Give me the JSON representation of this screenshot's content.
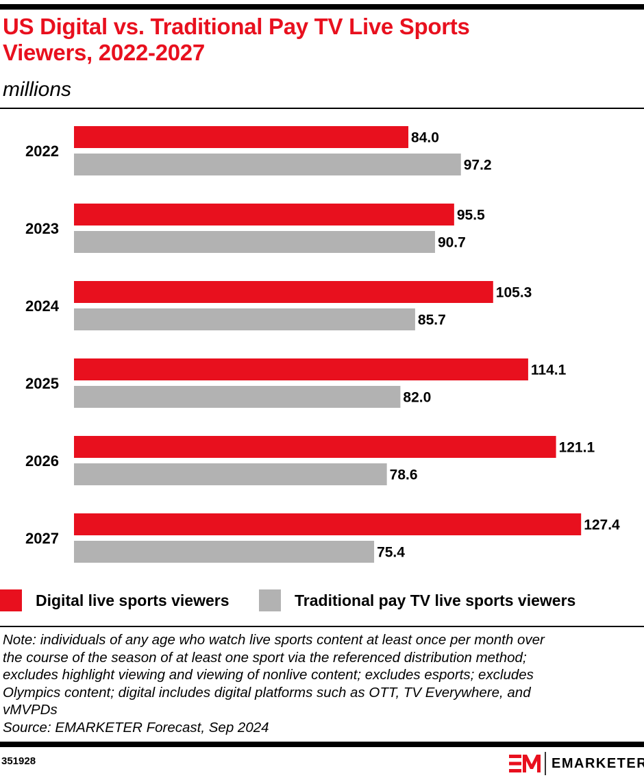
{
  "header": {
    "title_line1": "US Digital vs. Traditional Pay TV Live Sports",
    "title_line2": "Viewers, 2022-2027",
    "subtitle": "millions"
  },
  "colors": {
    "accent": "#e8101e",
    "digital": "#e8101e",
    "traditional": "#b2b2b2",
    "text": "#000000"
  },
  "chart_data": {
    "type": "bar",
    "orientation": "horizontal",
    "title": "US Digital vs. Traditional Pay TV Live Sports Viewers, 2022-2027",
    "subtitle": "millions",
    "xlabel": "",
    "ylabel": "",
    "categories": [
      "2022",
      "2023",
      "2024",
      "2025",
      "2026",
      "2027"
    ],
    "series": [
      {
        "name": "Digital live sports viewers",
        "color": "#e8101e",
        "values": [
          84.0,
          95.5,
          105.3,
          114.1,
          121.1,
          127.4
        ]
      },
      {
        "name": "Traditional pay TV live sports viewers",
        "color": "#b2b2b2",
        "values": [
          97.2,
          90.7,
          85.7,
          82.0,
          78.6,
          75.4
        ]
      }
    ],
    "xlim": [
      0,
      140
    ],
    "grid": false,
    "data_labels": true,
    "legend_position": "bottom"
  },
  "legend": {
    "items": [
      {
        "label": "Digital live sports viewers"
      },
      {
        "label": "Traditional pay TV live sports viewers"
      }
    ]
  },
  "footer": {
    "note_lines": [
      "Note: individuals of any age who watch live sports content at least once per month over",
      "the course of the season of at least one sport via the referenced distribution method;",
      "excludes highlight viewing and viewing of nonlive content; excludes esports; excludes",
      "Olympics content; digital includes digital platforms such as OTT, TV Everywhere, and",
      "vMVPDs"
    ],
    "source": "Source: EMARKETER Forecast, Sep 2024",
    "chart_id": "351928",
    "brand": "EMARKETER",
    "logo_icon": "em-logo-icon"
  }
}
